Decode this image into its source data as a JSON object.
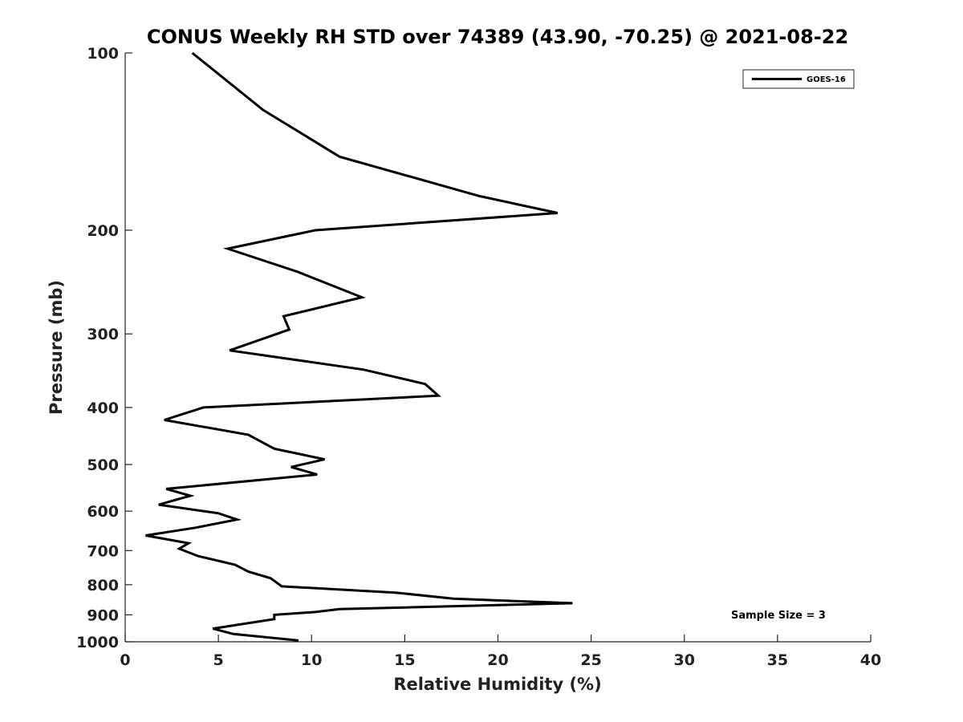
{
  "chart_data": {
    "type": "line",
    "title": "CONUS Weekly RH STD over 74389 (43.90, -70.25) @ 2021-08-22",
    "xlabel": "Relative Humidity (%)",
    "ylabel": "Pressure (mb)",
    "xlim": [
      0,
      40
    ],
    "ylim": [
      100,
      1000
    ],
    "y_scale": "log",
    "y_reversed": true,
    "xticks": [
      0,
      5,
      10,
      15,
      20,
      25,
      30,
      35,
      40
    ],
    "yticks": [
      100,
      200,
      300,
      400,
      500,
      600,
      700,
      800,
      900,
      1000
    ],
    "grid": false,
    "legend_position": "top-right",
    "annotation": "Sample Size = 3",
    "series": [
      {
        "name": "GOES-16",
        "color": "#000000",
        "points": [
          [
            3.6,
            100
          ],
          [
            7.4,
            125
          ],
          [
            11.5,
            150
          ],
          [
            19.0,
            175
          ],
          [
            23.2,
            187
          ],
          [
            10.2,
            200
          ],
          [
            5.5,
            215
          ],
          [
            9.2,
            235
          ],
          [
            12.7,
            260
          ],
          [
            8.5,
            280
          ],
          [
            8.8,
            295
          ],
          [
            5.6,
            320
          ],
          [
            12.8,
            345
          ],
          [
            16.1,
            365
          ],
          [
            16.8,
            382
          ],
          [
            4.2,
            400
          ],
          [
            2.1,
            420
          ],
          [
            6.6,
            445
          ],
          [
            8.0,
            470
          ],
          [
            10.7,
            490
          ],
          [
            8.9,
            505
          ],
          [
            10.3,
            520
          ],
          [
            2.2,
            550
          ],
          [
            3.5,
            565
          ],
          [
            1.8,
            585
          ],
          [
            5.0,
            605
          ],
          [
            6.0,
            620
          ],
          [
            3.8,
            640
          ],
          [
            1.1,
            660
          ],
          [
            3.4,
            680
          ],
          [
            2.9,
            695
          ],
          [
            3.9,
            715
          ],
          [
            5.9,
            740
          ],
          [
            6.6,
            760
          ],
          [
            7.8,
            780
          ],
          [
            8.4,
            805
          ],
          [
            14.5,
            825
          ],
          [
            17.6,
            845
          ],
          [
            24.0,
            860
          ],
          [
            11.5,
            880
          ],
          [
            10.2,
            890
          ],
          [
            8.0,
            900
          ],
          [
            8.0,
            915
          ],
          [
            4.7,
            950
          ],
          [
            5.8,
            970
          ],
          [
            9.3,
            995
          ]
        ]
      }
    ]
  }
}
